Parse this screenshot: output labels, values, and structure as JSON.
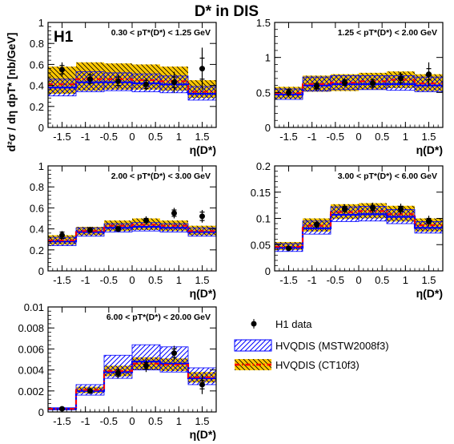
{
  "figure": {
    "title": "D* in DIS",
    "experiment_label": "H1",
    "y_axis_label": "d²σ / dη dpT* [nb/GeV]",
    "x_axis_label": "η(D*)"
  },
  "legend": {
    "items": [
      {
        "key": "data",
        "label": "H1 data"
      },
      {
        "key": "mstw",
        "label": "HVQDIS (MSTW2008f3)"
      },
      {
        "key": "ct10",
        "label": "HVQDIS (CT10f3)"
      }
    ]
  },
  "colors": {
    "data": "#000000",
    "mstw_line": "#0000ff",
    "mstw_hatch": "#0000ff",
    "ct10_line": "#ff0000",
    "ct10_band": "#ffc800",
    "ct10_hatch": "#000000"
  },
  "chart_data": [
    {
      "type": "line",
      "title": "0.30 < pT*(D*) < 1.25 GeV",
      "xlabel": "η(D*)",
      "ylabel": "d²σ / dη dpT* [nb/GeV]",
      "xlim": [
        -1.8,
        1.8
      ],
      "ylim": [
        0,
        1
      ],
      "xticks": [
        -1.5,
        -1,
        -0.5,
        0,
        0.5,
        1,
        1.5
      ],
      "xtick_labels": [
        "-1.5",
        "-1",
        "-0.5",
        "0",
        "0.5",
        "1",
        "1.5"
      ],
      "yticks": [
        0,
        0.2,
        0.4,
        0.6,
        0.8,
        1
      ],
      "ytick_labels": [
        "0",
        "0.2",
        "0.4",
        "0.6",
        "0.8",
        "1"
      ],
      "bin_edges": [
        -1.8,
        -1.2,
        -0.6,
        0,
        0.6,
        1.2,
        1.8
      ],
      "series": [
        {
          "name": "H1 data",
          "x": [
            -1.5,
            -0.9,
            -0.3,
            0.3,
            0.9,
            1.5
          ],
          "values": [
            0.55,
            0.46,
            0.44,
            0.41,
            0.43,
            0.56
          ],
          "err_stat": [
            0.04,
            0.04,
            0.04,
            0.04,
            0.05,
            0.1
          ],
          "err_tot": [
            0.07,
            0.06,
            0.06,
            0.06,
            0.1,
            0.2
          ]
        },
        {
          "name": "HVQDIS (MSTW2008f3)",
          "values": [
            0.38,
            0.43,
            0.43,
            0.42,
            0.41,
            0.32
          ],
          "low": [
            0.3,
            0.34,
            0.35,
            0.34,
            0.33,
            0.26
          ],
          "high": [
            0.46,
            0.53,
            0.52,
            0.51,
            0.49,
            0.39
          ]
        },
        {
          "name": "HVQDIS (CT10f3)",
          "values": [
            0.41,
            0.46,
            0.46,
            0.45,
            0.44,
            0.34
          ],
          "low": [
            0.32,
            0.35,
            0.36,
            0.36,
            0.35,
            0.28
          ],
          "high": [
            0.58,
            0.62,
            0.61,
            0.6,
            0.58,
            0.45
          ]
        }
      ]
    },
    {
      "type": "line",
      "title": "1.25 < pT*(D*) < 2.00 GeV",
      "xlabel": "η(D*)",
      "xlim": [
        -1.8,
        1.8
      ],
      "ylim": [
        0,
        1.5
      ],
      "xticks": [
        -1.5,
        -1,
        -0.5,
        0,
        0.5,
        1,
        1.5
      ],
      "xtick_labels": [
        "-1.5",
        "-1",
        "-0.5",
        "0",
        "0.5",
        "1",
        "1.5"
      ],
      "yticks": [
        0,
        0.5,
        1,
        1.5
      ],
      "ytick_labels": [
        "0",
        "0.5",
        "1",
        "1.5"
      ],
      "bin_edges": [
        -1.8,
        -1.2,
        -0.6,
        0,
        0.6,
        1.2,
        1.8
      ],
      "series": [
        {
          "name": "H1 data",
          "x": [
            -1.5,
            -0.9,
            -0.3,
            0.3,
            0.9,
            1.5
          ],
          "values": [
            0.5,
            0.59,
            0.64,
            0.63,
            0.7,
            0.76
          ],
          "err_stat": [
            0.04,
            0.04,
            0.04,
            0.05,
            0.06,
            0.08
          ],
          "err_tot": [
            0.06,
            0.06,
            0.06,
            0.07,
            0.09,
            0.17
          ]
        },
        {
          "name": "HVQDIS (MSTW2008f3)",
          "values": [
            0.47,
            0.6,
            0.62,
            0.62,
            0.62,
            0.6
          ],
          "low": [
            0.4,
            0.52,
            0.54,
            0.54,
            0.53,
            0.51
          ],
          "high": [
            0.55,
            0.72,
            0.74,
            0.74,
            0.74,
            0.72
          ]
        },
        {
          "name": "HVQDIS (CT10f3)",
          "values": [
            0.49,
            0.62,
            0.64,
            0.66,
            0.68,
            0.63
          ],
          "low": [
            0.41,
            0.51,
            0.52,
            0.54,
            0.56,
            0.52
          ],
          "high": [
            0.58,
            0.74,
            0.76,
            0.78,
            0.8,
            0.76
          ]
        }
      ]
    },
    {
      "type": "line",
      "title": "2.00 < pT*(D*) < 3.00 GeV",
      "xlabel": "η(D*)",
      "xlim": [
        -1.8,
        1.8
      ],
      "ylim": [
        0,
        1
      ],
      "xticks": [
        -1.5,
        -1,
        -0.5,
        0,
        0.5,
        1,
        1.5
      ],
      "xtick_labels": [
        "-1.5",
        "-1",
        "-0.5",
        "0",
        "0.5",
        "1",
        "1.5"
      ],
      "yticks": [
        0,
        0.2,
        0.4,
        0.6,
        0.8,
        1
      ],
      "ytick_labels": [
        "0",
        "0.2",
        "0.4",
        "0.6",
        "0.8",
        "1"
      ],
      "bin_edges": [
        -1.8,
        -1.2,
        -0.6,
        0,
        0.6,
        1.2,
        1.8
      ],
      "series": [
        {
          "name": "H1 data",
          "x": [
            -1.5,
            -0.9,
            -0.3,
            0.3,
            0.9,
            1.5
          ],
          "values": [
            0.34,
            0.39,
            0.4,
            0.48,
            0.55,
            0.52
          ],
          "err_stat": [
            0.03,
            0.02,
            0.02,
            0.02,
            0.03,
            0.04
          ],
          "err_tot": [
            0.04,
            0.03,
            0.03,
            0.04,
            0.05,
            0.06
          ]
        },
        {
          "name": "HVQDIS (MSTW2008f3)",
          "values": [
            0.28,
            0.37,
            0.41,
            0.42,
            0.41,
            0.37
          ],
          "low": [
            0.24,
            0.33,
            0.37,
            0.38,
            0.37,
            0.33
          ],
          "high": [
            0.32,
            0.41,
            0.45,
            0.46,
            0.45,
            0.41
          ]
        },
        {
          "name": "HVQDIS (CT10f3)",
          "values": [
            0.29,
            0.38,
            0.43,
            0.44,
            0.43,
            0.38
          ],
          "low": [
            0.25,
            0.34,
            0.38,
            0.39,
            0.38,
            0.34
          ],
          "high": [
            0.34,
            0.42,
            0.48,
            0.5,
            0.48,
            0.43
          ]
        }
      ]
    },
    {
      "type": "line",
      "title": "3.00 < pT*(D*) < 6.00 GeV",
      "xlabel": "η(D*)",
      "xlim": [
        -1.8,
        1.8
      ],
      "ylim": [
        0,
        0.2
      ],
      "xticks": [
        -1.5,
        -1,
        -0.5,
        0,
        0.5,
        1,
        1.5
      ],
      "xtick_labels": [
        "-1.5",
        "-1",
        "-0.5",
        "0",
        "0.5",
        "1",
        "1.5"
      ],
      "yticks": [
        0,
        0.05,
        0.1,
        0.15,
        0.2
      ],
      "ytick_labels": [
        "0",
        "0.05",
        "0.1",
        "0.15",
        "0.2"
      ],
      "bin_edges": [
        -1.8,
        -1.2,
        -0.6,
        0,
        0.6,
        1.2,
        1.8
      ],
      "series": [
        {
          "name": "H1 data",
          "x": [
            -1.5,
            -0.9,
            -0.3,
            0.3,
            0.9,
            1.5
          ],
          "values": [
            0.043,
            0.088,
            0.118,
            0.12,
            0.118,
            0.095
          ],
          "err_stat": [
            0.003,
            0.004,
            0.005,
            0.005,
            0.005,
            0.005
          ],
          "err_tot": [
            0.005,
            0.007,
            0.009,
            0.01,
            0.01,
            0.01
          ]
        },
        {
          "name": "HVQDIS (MSTW2008f3)",
          "values": [
            0.044,
            0.081,
            0.107,
            0.108,
            0.103,
            0.082
          ],
          "low": [
            0.037,
            0.07,
            0.094,
            0.095,
            0.09,
            0.072
          ],
          "high": [
            0.052,
            0.095,
            0.122,
            0.123,
            0.117,
            0.094
          ]
        },
        {
          "name": "HVQDIS (CT10f3)",
          "values": [
            0.046,
            0.086,
            0.112,
            0.114,
            0.108,
            0.087
          ],
          "low": [
            0.04,
            0.075,
            0.099,
            0.1,
            0.094,
            0.075
          ],
          "high": [
            0.055,
            0.1,
            0.127,
            0.129,
            0.124,
            0.1
          ]
        }
      ]
    },
    {
      "type": "line",
      "title": "6.00 < pT*(D*) < 20.00 GeV",
      "xlabel": "η(D*)",
      "xlim": [
        -1.8,
        1.8
      ],
      "ylim": [
        0,
        0.01
      ],
      "xticks": [
        -1.5,
        -1,
        -0.5,
        0,
        0.5,
        1,
        1.5
      ],
      "xtick_labels": [
        "-1.5",
        "-1",
        "-0.5",
        "0",
        "0.5",
        "1",
        "1.5"
      ],
      "yticks": [
        0,
        0.002,
        0.004,
        0.006,
        0.008,
        0.01
      ],
      "ytick_labels": [
        "0",
        "0.002",
        "0.004",
        "0.006",
        "0.008",
        "0.01"
      ],
      "bin_edges": [
        -1.8,
        -1.2,
        -0.6,
        0,
        0.6,
        1.2,
        1.8
      ],
      "series": [
        {
          "name": "H1 data",
          "x": [
            -1.5,
            -0.9,
            -0.3,
            0.3,
            0.9,
            1.5
          ],
          "values": [
            0.0003,
            0.002,
            0.0037,
            0.0044,
            0.0056,
            0.0026
          ],
          "err_stat": [
            0.0001,
            0.0002,
            0.0003,
            0.0003,
            0.0004,
            0.0004
          ],
          "err_tot": [
            0.0002,
            0.0003,
            0.0005,
            0.0006,
            0.0007,
            0.0009
          ]
        },
        {
          "name": "HVQDIS (MSTW2008f3)",
          "values": [
            0.0003,
            0.002,
            0.0038,
            0.0048,
            0.0046,
            0.0032
          ],
          "low": [
            0.0002,
            0.0016,
            0.0032,
            0.004,
            0.0038,
            0.0026
          ],
          "high": [
            0.0004,
            0.0026,
            0.0054,
            0.0064,
            0.0062,
            0.0042
          ]
        },
        {
          "name": "HVQDIS (CT10f3)",
          "values": [
            0.0003,
            0.0021,
            0.0039,
            0.0046,
            0.0045,
            0.0033
          ],
          "low": [
            0.0002,
            0.0018,
            0.0034,
            0.004,
            0.0039,
            0.0028
          ],
          "high": [
            0.0004,
            0.0024,
            0.0044,
            0.0052,
            0.0051,
            0.0038
          ]
        }
      ]
    }
  ]
}
